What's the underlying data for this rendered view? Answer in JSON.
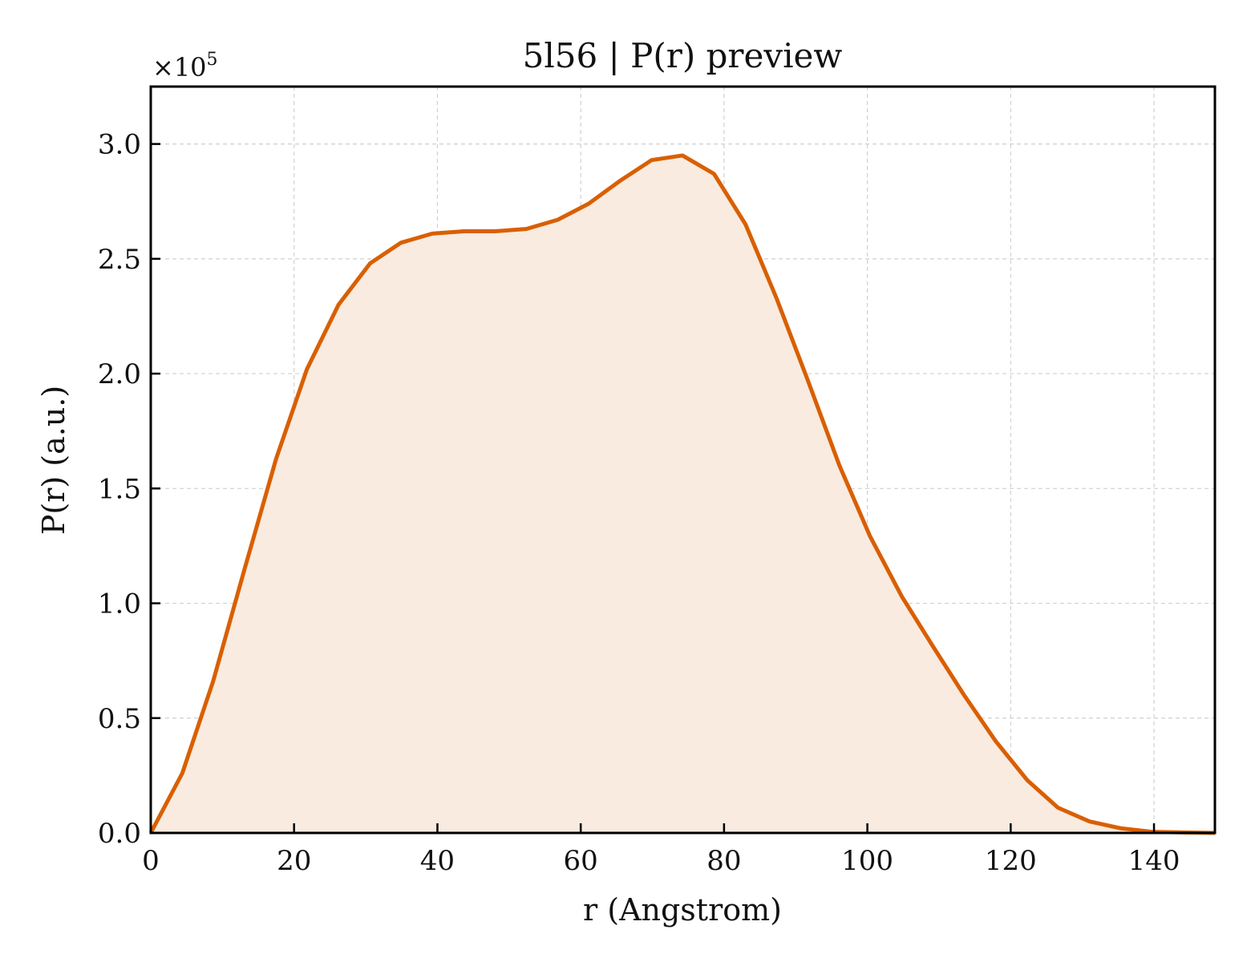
{
  "chart_data": {
    "type": "area",
    "title": "5l56 | P(r) preview",
    "xlabel": "r (Angstrom)",
    "ylabel": "P(r) (a.u.)",
    "y_multiplier": "×10",
    "y_multiplier_exponent": "5",
    "xlim": [
      0,
      148.5
    ],
    "ylim": [
      0,
      3.25
    ],
    "x_ticks": [
      0,
      20,
      40,
      60,
      80,
      100,
      120,
      140
    ],
    "y_ticks": [
      0.0,
      0.5,
      1.0,
      1.5,
      2.0,
      2.5,
      3.0
    ],
    "x_tick_labels": [
      "0",
      "20",
      "40",
      "60",
      "80",
      "100",
      "120",
      "140"
    ],
    "y_tick_labels": [
      "0.0",
      "0.5",
      "1.0",
      "1.5",
      "2.0",
      "2.5",
      "3.0"
    ],
    "grid": true,
    "line_color": "#d95f02",
    "fill_color": "#f9ebe0",
    "series": [
      {
        "x": [
          0,
          4.4,
          8.7,
          13.1,
          17.5,
          21.8,
          26.2,
          30.6,
          34.9,
          39.3,
          43.7,
          48.0,
          52.4,
          56.8,
          61.1,
          65.5,
          69.9,
          74.2,
          78.6,
          83.0,
          87.3,
          91.7,
          96.1,
          100.4,
          104.8,
          109.2,
          113.5,
          117.9,
          122.3,
          126.6,
          131.0,
          135.4,
          139.7,
          144.1,
          148.5
        ],
        "y": [
          0.0,
          0.26,
          0.66,
          1.15,
          1.63,
          2.02,
          2.3,
          2.48,
          2.57,
          2.61,
          2.62,
          2.62,
          2.63,
          2.67,
          2.74,
          2.84,
          2.93,
          2.95,
          2.87,
          2.65,
          2.33,
          1.97,
          1.6,
          1.29,
          1.03,
          0.81,
          0.6,
          0.4,
          0.23,
          0.11,
          0.05,
          0.02,
          0.005,
          0.002,
          0.0
        ]
      }
    ]
  }
}
